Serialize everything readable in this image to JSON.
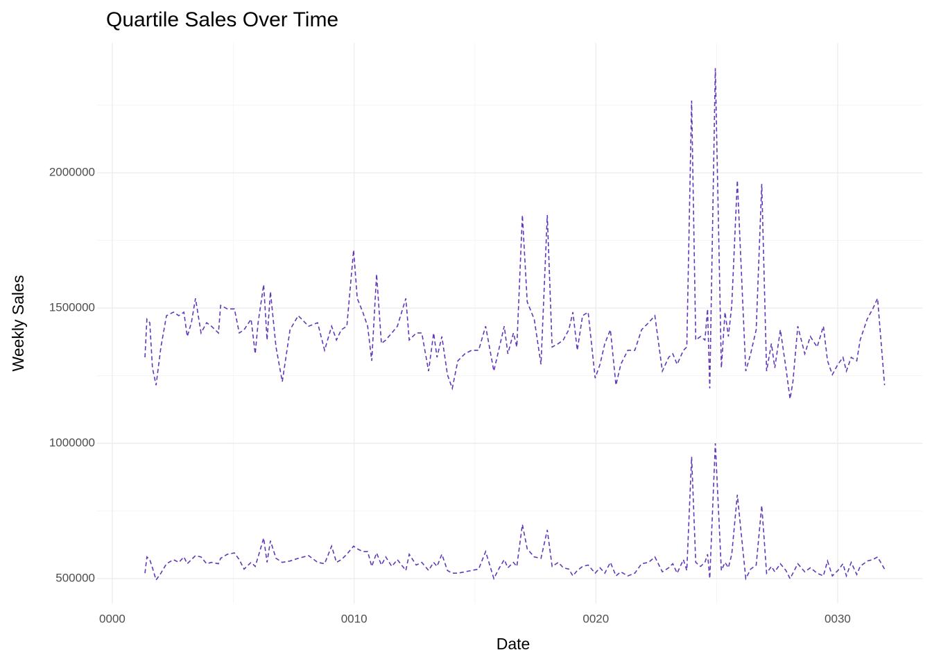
{
  "chart_data": {
    "type": "line",
    "title": "Quartile Sales Over Time",
    "x_label": "Date",
    "y_label": "Weekly Sales",
    "xlim": [
      -0.63,
      33.5
    ],
    "xticks": [
      {
        "value": 0,
        "label": "0000"
      },
      {
        "value": 10,
        "label": "0010"
      },
      {
        "value": 20,
        "label": "0020"
      },
      {
        "value": 30,
        "label": "0030"
      }
    ],
    "x_minor_ticks": [
      5,
      15,
      25
    ],
    "ylim": [
      407700,
      2480000
    ],
    "yticks": [
      500000,
      1000000,
      1500000,
      2000000
    ],
    "y_minor_ticks": [
      750000,
      1250000,
      1750000,
      2250000
    ],
    "grid": true,
    "line_style": "dashed",
    "x": [
      1.35,
      1.43,
      1.55,
      1.66,
      1.81,
      2.01,
      2.24,
      2.53,
      2.75,
      2.96,
      3.1,
      3.27,
      3.44,
      3.67,
      3.9,
      4.1,
      4.39,
      4.48,
      4.76,
      5.05,
      5.25,
      5.45,
      5.74,
      5.91,
      6.03,
      6.26,
      6.4,
      6.54,
      6.77,
      7.03,
      7.35,
      7.69,
      8.12,
      8.49,
      8.78,
      9.07,
      9.27,
      9.47,
      9.7,
      9.98,
      10.13,
      10.36,
      10.56,
      10.73,
      10.93,
      11.13,
      11.31,
      11.56,
      11.79,
      12.14,
      12.28,
      12.57,
      12.8,
      13.08,
      13.29,
      13.43,
      13.63,
      13.86,
      14.06,
      14.29,
      14.58,
      14.86,
      15.15,
      15.44,
      15.78,
      16.01,
      16.21,
      16.36,
      16.59,
      16.73,
      16.96,
      17.16,
      17.45,
      17.73,
      17.99,
      18.19,
      18.45,
      18.65,
      18.88,
      19.05,
      19.23,
      19.45,
      19.68,
      19.97,
      20.17,
      20.37,
      20.6,
      20.83,
      21.03,
      21.32,
      21.61,
      21.89,
      22.18,
      22.44,
      22.75,
      23.01,
      23.18,
      23.36,
      23.62,
      23.76,
      23.96,
      24.13,
      24.33,
      24.51,
      24.62,
      24.71,
      24.94,
      25.19,
      25.34,
      25.48,
      25.62,
      25.85,
      26.2,
      26.4,
      26.63,
      26.86,
      27.06,
      27.26,
      27.4,
      27.63,
      27.86,
      28.03,
      28.15,
      28.35,
      28.64,
      28.87,
      29.15,
      29.41,
      29.58,
      29.78,
      30.01,
      30.22,
      30.36,
      30.56,
      30.79,
      30.93,
      31.22,
      31.45,
      31.65,
      31.94
    ],
    "series": [
      {
        "color": "#5f37b8",
        "values": [
          1318000,
          1459000,
          1446000,
          1279000,
          1215000,
          1356000,
          1472000,
          1485000,
          1472000,
          1485000,
          1395000,
          1446000,
          1536000,
          1408000,
          1446000,
          1433000,
          1408000,
          1510000,
          1497000,
          1497000,
          1408000,
          1420000,
          1459000,
          1331000,
          1446000,
          1587000,
          1382000,
          1561000,
          1356000,
          1228000,
          1420000,
          1472000,
          1433000,
          1446000,
          1344000,
          1433000,
          1382000,
          1420000,
          1433000,
          1715000,
          1536000,
          1485000,
          1433000,
          1305000,
          1626000,
          1369000,
          1382000,
          1408000,
          1433000,
          1536000,
          1382000,
          1408000,
          1408000,
          1267000,
          1408000,
          1318000,
          1395000,
          1254000,
          1203000,
          1305000,
          1331000,
          1344000,
          1344000,
          1433000,
          1267000,
          1356000,
          1433000,
          1331000,
          1408000,
          1356000,
          1844000,
          1523000,
          1459000,
          1292000,
          1844000,
          1356000,
          1369000,
          1382000,
          1420000,
          1485000,
          1344000,
          1472000,
          1485000,
          1241000,
          1292000,
          1369000,
          1420000,
          1215000,
          1292000,
          1344000,
          1344000,
          1420000,
          1446000,
          1472000,
          1267000,
          1318000,
          1331000,
          1292000,
          1344000,
          1356000,
          2267000,
          1382000,
          1395000,
          1382000,
          1497000,
          1203000,
          2387000,
          1279000,
          1485000,
          1395000,
          1510000,
          1972000,
          1267000,
          1331000,
          1420000,
          1959000,
          1267000,
          1369000,
          1279000,
          1420000,
          1279000,
          1164000,
          1228000,
          1433000,
          1331000,
          1395000,
          1356000,
          1433000,
          1305000,
          1254000,
          1292000,
          1318000,
          1267000,
          1318000,
          1305000,
          1382000,
          1459000,
          1497000,
          1536000,
          1215000
        ]
      },
      {
        "color": "#5f37b8",
        "values": [
          520000,
          580000,
          570000,
          540000,
          495000,
          520000,
          555000,
          570000,
          560000,
          580000,
          555000,
          570000,
          585000,
          580000,
          555000,
          560000,
          555000,
          575000,
          590000,
          595000,
          570000,
          535000,
          560000,
          545000,
          580000,
          650000,
          560000,
          640000,
          575000,
          560000,
          565000,
          575000,
          585000,
          560000,
          555000,
          620000,
          560000,
          570000,
          590000,
          620000,
          610000,
          600000,
          600000,
          545000,
          595000,
          550000,
          580000,
          545000,
          570000,
          530000,
          590000,
          550000,
          560000,
          530000,
          560000,
          545000,
          590000,
          530000,
          520000,
          520000,
          525000,
          530000,
          535000,
          600000,
          500000,
          540000,
          570000,
          540000,
          560000,
          545000,
          700000,
          610000,
          580000,
          575000,
          680000,
          545000,
          560000,
          540000,
          535000,
          510000,
          530000,
          545000,
          550000,
          520000,
          540000,
          520000,
          560000,
          510000,
          525000,
          510000,
          520000,
          555000,
          560000,
          580000,
          525000,
          540000,
          555000,
          520000,
          570000,
          530000,
          950000,
          560000,
          545000,
          560000,
          590000,
          500000,
          1000000,
          530000,
          560000,
          540000,
          590000,
          810000,
          500000,
          535000,
          550000,
          770000,
          520000,
          545000,
          525000,
          555000,
          530000,
          500000,
          520000,
          555000,
          525000,
          540000,
          520000,
          510000,
          565000,
          510000,
          530000,
          555000,
          510000,
          560000,
          515000,
          545000,
          565000,
          570000,
          580000,
          535000
        ]
      }
    ]
  }
}
